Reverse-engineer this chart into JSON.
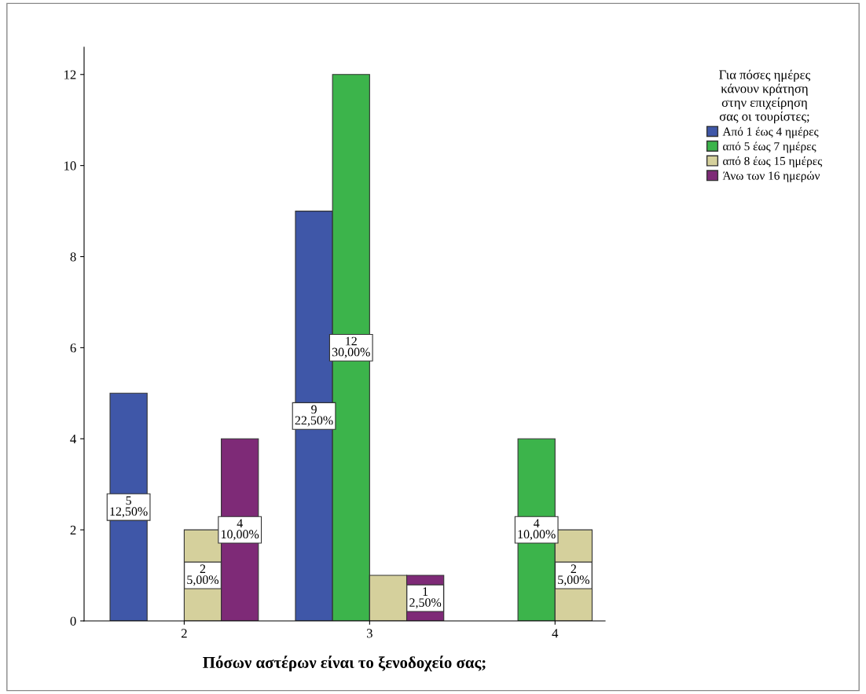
{
  "chart_data": {
    "type": "bar",
    "xlabel": "Πόσων αστέρων είναι το ξενοδοχείο σας;",
    "legend_title": "Για πόσες ημέρες\nκάνουν κράτηση\nστην επιχείρηση\nσας οι τουρίστες;",
    "categories": [
      "2",
      "3",
      "4"
    ],
    "series": [
      {
        "name": "Από 1 έως 4 ημέρες",
        "color": "#3f57a8",
        "values": [
          5,
          9,
          null
        ],
        "value_labels": [
          "5\n12,50%",
          "9\n22,50%",
          null
        ]
      },
      {
        "name": "από 5 έως 7 ημέρες",
        "color": "#3cb44b",
        "values": [
          null,
          12,
          4
        ],
        "value_labels": [
          null,
          "12\n30,00%",
          "4\n10,00%"
        ]
      },
      {
        "name": "από 8 έως 15 ημέρες",
        "color": "#d5d09c",
        "values": [
          2,
          1,
          2
        ],
        "value_labels": [
          "2\n5,00%",
          null,
          "2\n5,00%"
        ]
      },
      {
        "name": "Άνω των 16 ημερών",
        "color": "#7e2a77",
        "values": [
          4,
          1,
          null
        ],
        "value_labels": [
          "4\n10,00%",
          "1\n2,50%",
          null
        ]
      }
    ],
    "ylim": [
      0,
      12.6
    ],
    "yticks": [
      0,
      2,
      4,
      6,
      8,
      10,
      12
    ],
    "grid": false,
    "legend": "top right"
  }
}
